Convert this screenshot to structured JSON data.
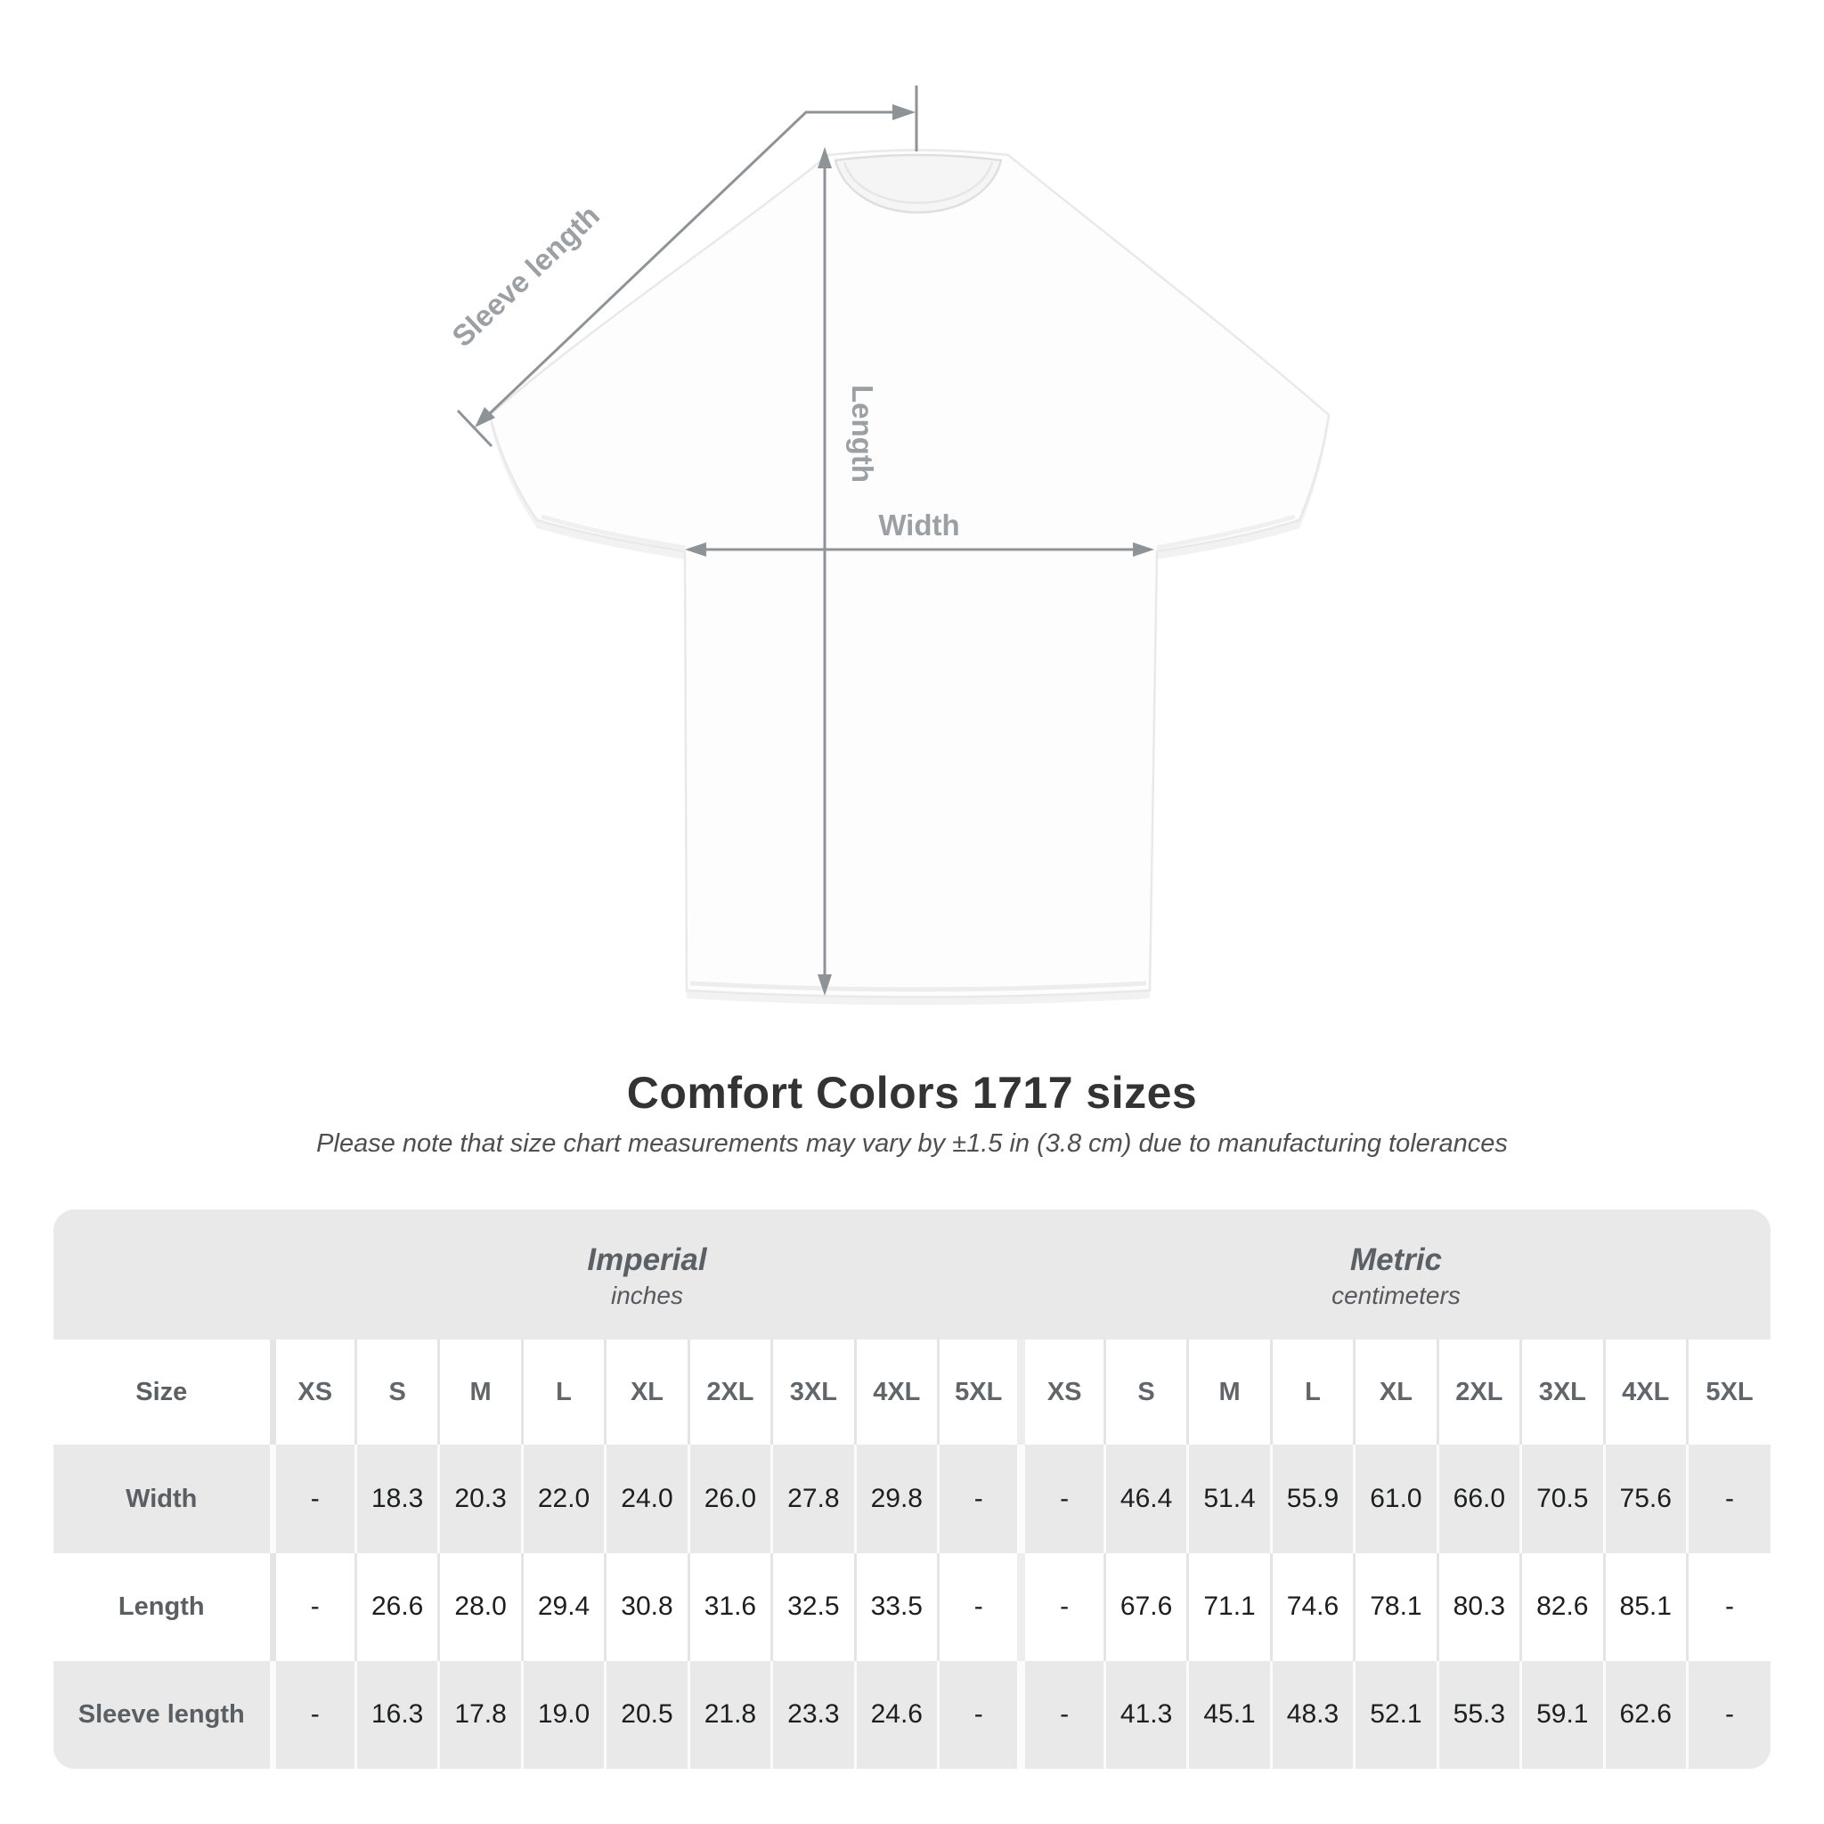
{
  "diagram": {
    "labels": {
      "sleeve_length": "Sleeve length",
      "length": "Length",
      "width": "Width"
    },
    "line_color": "#8e9397",
    "label_color": "#9ba0a4"
  },
  "title": "Comfort Colors 1717 sizes",
  "subtitle": "Please note that size chart measurements may vary by ±1.5 in (3.8 cm) due to manufacturing tolerances",
  "table": {
    "size_header": "Size",
    "unit_groups": [
      {
        "label": "Imperial",
        "unit": "inches"
      },
      {
        "label": "Metric",
        "unit": "centimeters"
      }
    ],
    "sizes": [
      "XS",
      "S",
      "M",
      "L",
      "XL",
      "2XL",
      "3XL",
      "4XL",
      "5XL"
    ],
    "rows": [
      {
        "label": "Width",
        "imperial": [
          "-",
          "18.3",
          "20.3",
          "22.0",
          "24.0",
          "26.0",
          "27.8",
          "29.8",
          "-"
        ],
        "metric": [
          "-",
          "46.4",
          "51.4",
          "55.9",
          "61.0",
          "66.0",
          "70.5",
          "75.6",
          "-"
        ]
      },
      {
        "label": "Length",
        "imperial": [
          "-",
          "26.6",
          "28.0",
          "29.4",
          "30.8",
          "31.6",
          "32.5",
          "33.5",
          "-"
        ],
        "metric": [
          "-",
          "67.6",
          "71.1",
          "74.6",
          "78.1",
          "80.3",
          "82.6",
          "85.1",
          "-"
        ]
      },
      {
        "label": "Sleeve length",
        "imperial": [
          "-",
          "16.3",
          "17.8",
          "19.0",
          "20.5",
          "21.8",
          "23.3",
          "24.6",
          "-"
        ],
        "metric": [
          "-",
          "41.3",
          "45.1",
          "48.3",
          "52.1",
          "55.3",
          "59.1",
          "62.6",
          "-"
        ]
      }
    ]
  },
  "chart_data": {
    "type": "table",
    "title": "Comfort Colors 1717 sizes",
    "note": "Measurements may vary by ±1.5 in (3.8 cm) due to manufacturing tolerances",
    "column_groups": [
      "Imperial (inches)",
      "Metric (centimeters)"
    ],
    "columns": [
      "XS",
      "S",
      "M",
      "L",
      "XL",
      "2XL",
      "3XL",
      "4XL",
      "5XL"
    ],
    "rows": [
      {
        "measure": "Width",
        "imperial_in": [
          null,
          18.3,
          20.3,
          22.0,
          24.0,
          26.0,
          27.8,
          29.8,
          null
        ],
        "metric_cm": [
          null,
          46.4,
          51.4,
          55.9,
          61.0,
          66.0,
          70.5,
          75.6,
          null
        ]
      },
      {
        "measure": "Length",
        "imperial_in": [
          null,
          26.6,
          28.0,
          29.4,
          30.8,
          31.6,
          32.5,
          33.5,
          null
        ],
        "metric_cm": [
          null,
          67.6,
          71.1,
          74.6,
          78.1,
          80.3,
          82.6,
          85.1,
          null
        ]
      },
      {
        "measure": "Sleeve length",
        "imperial_in": [
          null,
          16.3,
          17.8,
          19.0,
          20.5,
          21.8,
          23.3,
          24.6,
          null
        ],
        "metric_cm": [
          null,
          41.3,
          45.1,
          48.3,
          52.1,
          55.3,
          59.1,
          62.6,
          null
        ]
      }
    ]
  }
}
